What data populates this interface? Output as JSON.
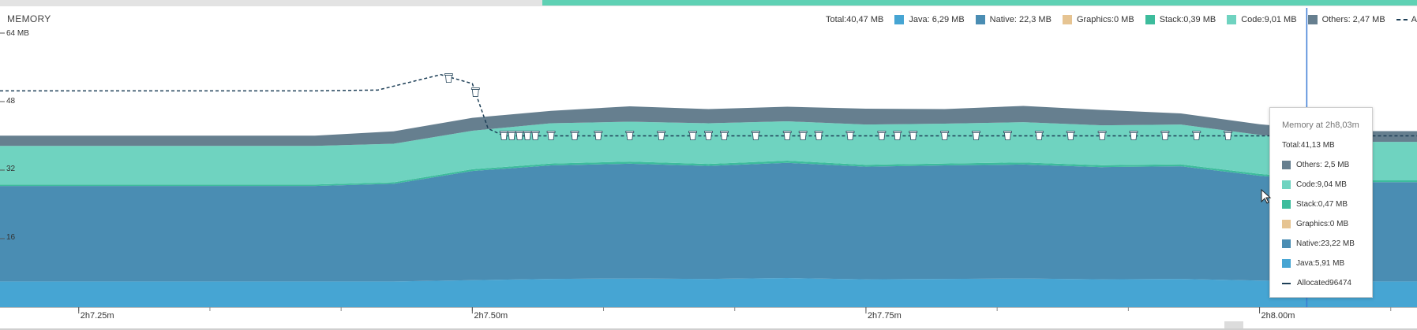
{
  "panel": {
    "title": "MEMORY"
  },
  "legend": {
    "total": "Total:40,47 MB",
    "items": [
      {
        "label": "Java: 6,29 MB",
        "color": "#46a5d3"
      },
      {
        "label": "Native:  22,3 MB",
        "color": "#4a8db3"
      },
      {
        "label": "Graphics:0 MB",
        "color": "#e6c492"
      },
      {
        "label": "Stack:0,39 MB",
        "color": "#3dbc9c"
      },
      {
        "label": "Code:9,01 MB",
        "color": "#6fd3c0"
      },
      {
        "label": "Others: 2,47 MB",
        "color": "#667f8f"
      }
    ],
    "allocated_label": "A"
  },
  "colors": {
    "java": "#46a5d3",
    "native": "#4a8db3",
    "stack": "#3dbc9c",
    "code": "#6fd3c0",
    "others": "#667f8f",
    "allocated": "#1d3f57",
    "cursor": "#3a7bd5",
    "selection": "#5fd1b4"
  },
  "icons": {
    "gc_event": "trash-can-icon",
    "mouse": "mouse-pointer-icon"
  },
  "tooltip": {
    "header": "Memory at 2h8,03m",
    "total": "Total:41,13 MB",
    "rows": [
      {
        "label": "Others: 2,5 MB",
        "color": "#667f8f"
      },
      {
        "label": "Code:9,04 MB",
        "color": "#6fd3c0"
      },
      {
        "label": "Stack:0,47 MB",
        "color": "#3dbc9c"
      },
      {
        "label": "Graphics:0 MB",
        "color": "#e6c492"
      },
      {
        "label": "Native:23,22 MB",
        "color": "#4a8db3"
      },
      {
        "label": "Java:5,91 MB",
        "color": "#46a5d3"
      }
    ],
    "allocated": "Allocated96474"
  },
  "chart_data": {
    "type": "area",
    "stacked": true,
    "title": "MEMORY",
    "ylim": [
      0,
      64
    ],
    "y_ticks": [
      "16",
      "32",
      "48",
      "64 MB"
    ],
    "y_tick_values": [
      16,
      32,
      48,
      64
    ],
    "x_ticks": [
      "2h7.25m",
      "2h7.50m",
      "2h7.75m",
      "2h8.00m"
    ],
    "x_tick_values": [
      2.25,
      2.5,
      2.75,
      3.0
    ],
    "x_unit": "minutes after 2h5",
    "xlim": [
      2.2,
      3.1
    ],
    "x": [
      2.2,
      2.25,
      2.3,
      2.35,
      2.4,
      2.45,
      2.5,
      2.55,
      2.6,
      2.65,
      2.7,
      2.75,
      2.8,
      2.85,
      2.9,
      2.95,
      3.0,
      3.05,
      3.1
    ],
    "series": [
      {
        "name": "Java",
        "values": [
          6.0,
          6.0,
          6.0,
          6.0,
          6.0,
          6.0,
          6.3,
          6.6,
          6.7,
          6.6,
          6.8,
          6.5,
          6.6,
          6.7,
          6.5,
          6.6,
          6.2,
          6.0,
          6.0
        ]
      },
      {
        "name": "Native",
        "values": [
          22.3,
          22.3,
          22.3,
          22.3,
          22.3,
          22.8,
          25.5,
          26.5,
          26.8,
          26.4,
          26.9,
          26.3,
          26.5,
          26.6,
          26.2,
          26.3,
          24.5,
          23.2,
          23.2
        ]
      },
      {
        "name": "Graphics",
        "values": [
          0,
          0,
          0,
          0,
          0,
          0,
          0,
          0,
          0,
          0,
          0,
          0,
          0,
          0,
          0,
          0,
          0,
          0,
          0
        ]
      },
      {
        "name": "Stack",
        "values": [
          0.35,
          0.35,
          0.35,
          0.35,
          0.35,
          0.35,
          0.4,
          0.45,
          0.5,
          0.45,
          0.5,
          0.45,
          0.45,
          0.5,
          0.45,
          0.45,
          0.42,
          0.4,
          0.4
        ]
      },
      {
        "name": "Code",
        "values": [
          9.0,
          9.0,
          9.0,
          9.0,
          9.0,
          9.0,
          9.0,
          9.4,
          9.3,
          9.5,
          9.2,
          9.4,
          9.3,
          9.4,
          9.3,
          9.3,
          9.1,
          9.0,
          9.0
        ]
      },
      {
        "name": "Others",
        "values": [
          2.4,
          2.4,
          2.4,
          2.4,
          2.4,
          2.9,
          3.0,
          2.9,
          3.6,
          3.3,
          3.4,
          3.7,
          3.4,
          3.8,
          3.6,
          2.6,
          2.5,
          2.5,
          2.5
        ]
      }
    ],
    "allocated": {
      "name": "Allocated",
      "x": [
        2.2,
        2.3,
        2.4,
        2.44,
        2.48,
        2.5,
        2.51,
        2.52,
        2.6,
        2.7,
        2.8,
        2.9,
        3.0,
        3.1
      ],
      "values": [
        50.5,
        50.5,
        50.5,
        50.7,
        54.3,
        52.2,
        41.7,
        40.0,
        40.0,
        40.0,
        40.0,
        40.0,
        40.0,
        40.0
      ]
    },
    "gc_events": [
      2.502,
      2.52,
      2.525,
      2.53,
      2.535,
      2.54,
      2.55,
      2.565,
      2.58,
      2.6,
      2.62,
      2.64,
      2.65,
      2.66,
      2.68,
      2.7,
      2.71,
      2.72,
      2.74,
      2.76,
      2.77,
      2.78,
      2.8,
      2.82,
      2.84,
      2.86,
      2.88,
      2.9,
      2.92,
      2.94,
      2.96,
      2.98
    ],
    "cursor_x": 3.03,
    "grid": false
  }
}
